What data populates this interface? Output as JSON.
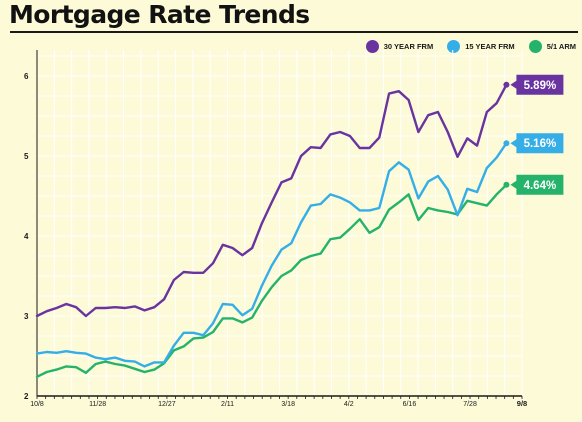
{
  "title": "Mortgage Rate Trends",
  "colors": {
    "background": "#fcfad7",
    "grid": "#ffffff",
    "axis": "#1a1a1a"
  },
  "legend_entries": [
    {
      "label": "30 YEAR FRM",
      "color": "#6a34a0"
    },
    {
      "label": "15 YEAR FRM",
      "color": "#35aee7"
    },
    {
      "label": "5/1 ARM",
      "color": "#25b36b"
    }
  ],
  "chart_data": {
    "type": "line",
    "title": "Mortgage Rate Trends",
    "xlabel": "",
    "ylabel": "",
    "x_tick_labels": [
      "10/8",
      "11/28",
      "12/27",
      "2/11",
      "3/18",
      "4/2",
      "6/16",
      "7/28",
      "9/8"
    ],
    "x_tick_index": [
      0,
      7,
      15,
      22,
      29,
      36,
      43,
      50,
      56
    ],
    "y_ticks": [
      "2",
      "3",
      "4",
      "5",
      "6"
    ],
    "ylim": [
      2,
      6.25
    ],
    "grid": true,
    "legend_position": "top-right",
    "series": [
      {
        "name": "30 YEAR FRM",
        "color": "#6a34a0",
        "end_label": "5.89%",
        "values": [
          3.0,
          3.06,
          3.1,
          3.15,
          3.11,
          3.0,
          3.1,
          3.1,
          3.11,
          3.1,
          3.12,
          3.07,
          3.11,
          3.21,
          3.45,
          3.55,
          3.54,
          3.54,
          3.66,
          3.89,
          3.85,
          3.76,
          3.85,
          4.16,
          4.42,
          4.67,
          4.72,
          5.0,
          5.11,
          5.1,
          5.27,
          5.3,
          5.25,
          5.1,
          5.1,
          5.23,
          5.78,
          5.81,
          5.7,
          5.3,
          5.51,
          5.55,
          5.3,
          4.99,
          5.22,
          5.13,
          5.55,
          5.66,
          5.89
        ]
      },
      {
        "name": "15 YEAR FRM",
        "color": "#35aee7",
        "end_label": "5.16%",
        "values": [
          2.53,
          2.55,
          2.54,
          2.56,
          2.54,
          2.53,
          2.48,
          2.46,
          2.48,
          2.44,
          2.43,
          2.37,
          2.42,
          2.42,
          2.63,
          2.79,
          2.79,
          2.76,
          2.91,
          3.15,
          3.14,
          3.01,
          3.09,
          3.38,
          3.63,
          3.83,
          3.91,
          4.17,
          4.38,
          4.4,
          4.52,
          4.48,
          4.42,
          4.32,
          4.32,
          4.35,
          4.81,
          4.92,
          4.83,
          4.47,
          4.68,
          4.75,
          4.58,
          4.26,
          4.59,
          4.55,
          4.85,
          4.98,
          5.16
        ]
      },
      {
        "name": "5/1 ARM",
        "color": "#25b36b",
        "end_label": "4.64%",
        "values": [
          2.24,
          2.3,
          2.33,
          2.37,
          2.36,
          2.29,
          2.4,
          2.43,
          2.4,
          2.38,
          2.34,
          2.3,
          2.33,
          2.41,
          2.57,
          2.62,
          2.72,
          2.73,
          2.8,
          2.97,
          2.97,
          2.92,
          2.98,
          3.19,
          3.36,
          3.5,
          3.57,
          3.7,
          3.75,
          3.78,
          3.96,
          3.98,
          4.09,
          4.21,
          4.04,
          4.11,
          4.33,
          4.42,
          4.52,
          4.2,
          4.35,
          4.32,
          4.3,
          4.27,
          4.44,
          4.41,
          4.38,
          4.52,
          4.64
        ]
      }
    ]
  }
}
